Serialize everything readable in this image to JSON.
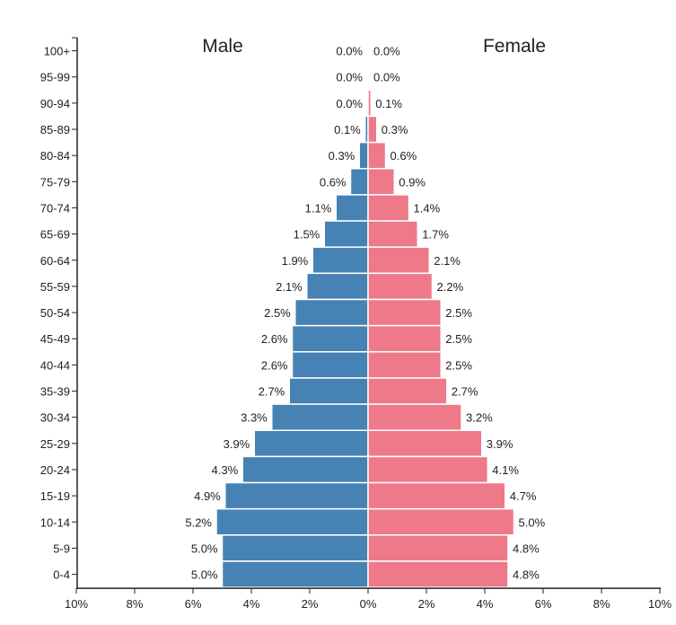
{
  "chart_data": {
    "type": "bar",
    "subtype": "population-pyramid",
    "categories": [
      "100+",
      "95-99",
      "90-94",
      "85-89",
      "80-84",
      "75-79",
      "70-74",
      "65-69",
      "60-64",
      "55-59",
      "50-54",
      "45-49",
      "40-44",
      "35-39",
      "30-34",
      "25-29",
      "20-24",
      "15-19",
      "10-14",
      "5-9",
      "0-4"
    ],
    "series": [
      {
        "name": "Male",
        "color": "#4682b4",
        "values": [
          0.0,
          0.0,
          0.0,
          0.1,
          0.3,
          0.6,
          1.1,
          1.5,
          1.9,
          2.1,
          2.5,
          2.6,
          2.6,
          2.7,
          3.3,
          3.9,
          4.3,
          4.9,
          5.2,
          5.0,
          5.0
        ],
        "labels": [
          "0.0%",
          "0.0%",
          "0.0%",
          "0.1%",
          "0.3%",
          "0.6%",
          "1.1%",
          "1.5%",
          "1.9%",
          "2.1%",
          "2.5%",
          "2.6%",
          "2.6%",
          "2.7%",
          "3.3%",
          "3.9%",
          "4.3%",
          "4.9%",
          "5.2%",
          "5.0%",
          "5.0%"
        ]
      },
      {
        "name": "Female",
        "color": "#ee7989",
        "values": [
          0.0,
          0.0,
          0.1,
          0.3,
          0.6,
          0.9,
          1.4,
          1.7,
          2.1,
          2.2,
          2.5,
          2.5,
          2.5,
          2.7,
          3.2,
          3.9,
          4.1,
          4.7,
          5.0,
          4.8,
          4.8
        ],
        "labels": [
          "0.0%",
          "0.0%",
          "0.1%",
          "0.3%",
          "0.6%",
          "0.9%",
          "1.4%",
          "1.7%",
          "2.1%",
          "2.2%",
          "2.5%",
          "2.5%",
          "2.5%",
          "2.7%",
          "3.2%",
          "3.9%",
          "4.1%",
          "4.7%",
          "5.0%",
          "4.8%",
          "4.8%"
        ]
      }
    ],
    "xlim": [
      -10,
      10
    ],
    "xticks": [
      "10%",
      "8%",
      "6%",
      "4%",
      "2%",
      "0%",
      "2%",
      "4%",
      "6%",
      "8%",
      "10%"
    ],
    "legend_titles": {
      "left": "Male",
      "right": "Female"
    },
    "xlabel": "",
    "ylabel": ""
  }
}
